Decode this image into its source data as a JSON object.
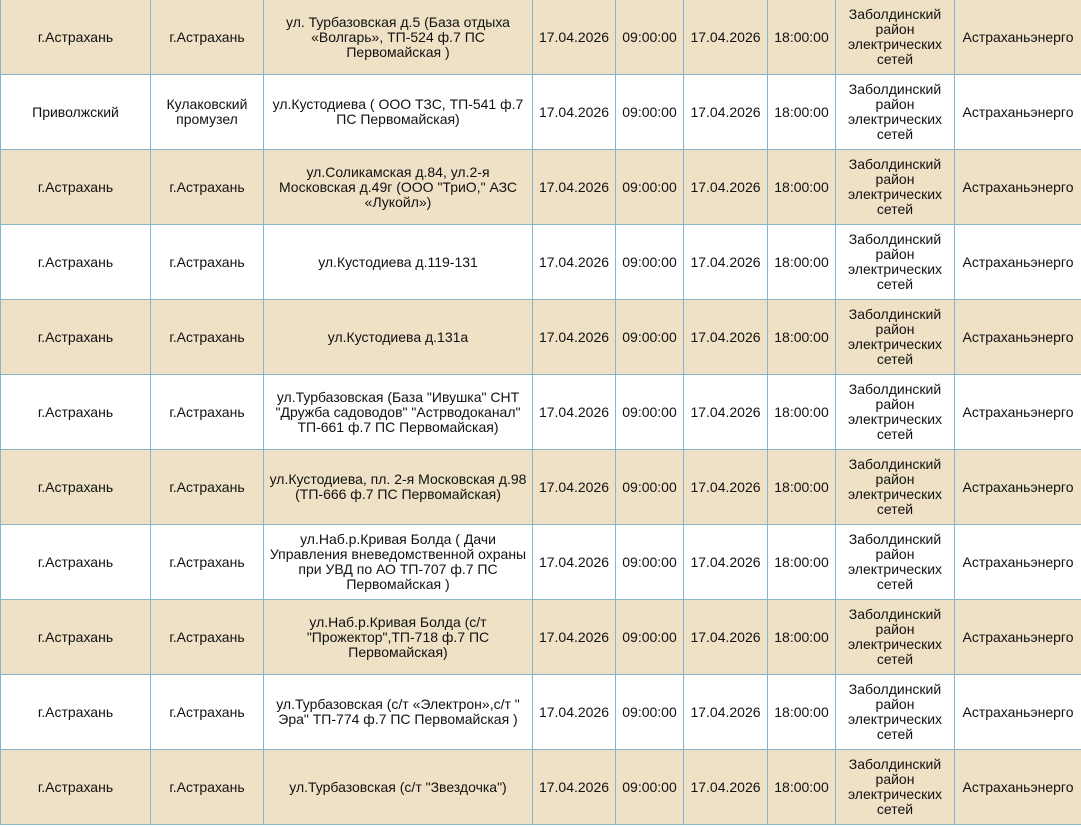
{
  "table": {
    "rows": [
      [
        "г.Астрахань",
        "г.Астрахань",
        "ул. Турбазовская д.5 (База отдыха «Волгарь», ТП-524 ф.7 ПС Первомайская )",
        "17.04.2026",
        "09:00:00",
        "17.04.2026",
        "18:00:00",
        "Заболдинский район электрических сетей",
        "Астраханьэнерго"
      ],
      [
        "Приволжский",
        "Кулаковский промузел",
        "ул.Кустодиева ( ООО ТЗС, ТП-541 ф.7 ПС Первомайская)",
        "17.04.2026",
        "09:00:00",
        "17.04.2026",
        "18:00:00",
        "Заболдинский район электрических сетей",
        "Астраханьэнерго"
      ],
      [
        "г.Астрахань",
        "г.Астрахань",
        "ул.Соликамская д.84, ул.2-я Московская д.49г (ООО \"ТриО,\" АЗС «Лукойл»)",
        "17.04.2026",
        "09:00:00",
        "17.04.2026",
        "18:00:00",
        "Заболдинский район электрических сетей",
        "Астраханьэнерго"
      ],
      [
        "г.Астрахань",
        "г.Астрахань",
        "ул.Кустодиева д.119-131",
        "17.04.2026",
        "09:00:00",
        "17.04.2026",
        "18:00:00",
        "Заболдинский район электрических сетей",
        "Астраханьэнерго"
      ],
      [
        "г.Астрахань",
        "г.Астрахань",
        "ул.Кустодиева д.131а",
        "17.04.2026",
        "09:00:00",
        "17.04.2026",
        "18:00:00",
        "Заболдинский район электрических сетей",
        "Астраханьэнерго"
      ],
      [
        "г.Астрахань",
        "г.Астрахань",
        "ул.Турбазовская (База \"Ивушка\" СНТ \"Дружба садоводов\" \"Астрводоканал\" ТП-661 ф.7 ПС Первомайская)",
        "17.04.2026",
        "09:00:00",
        "17.04.2026",
        "18:00:00",
        "Заболдинский район электрических сетей",
        "Астраханьэнерго"
      ],
      [
        "г.Астрахань",
        "г.Астрахань",
        "ул.Кустодиева, пл. 2-я Московская д.98 (ТП-666 ф.7 ПС Первомайская)",
        "17.04.2026",
        "09:00:00",
        "17.04.2026",
        "18:00:00",
        "Заболдинский район электрических сетей",
        "Астраханьэнерго"
      ],
      [
        "г.Астрахань",
        "г.Астрахань",
        "ул.Наб.р.Кривая Болда ( Дачи Управления вневедомственной охраны при УВД по АО ТП-707 ф.7 ПС Первомайская )",
        "17.04.2026",
        "09:00:00",
        "17.04.2026",
        "18:00:00",
        "Заболдинский район электрических сетей",
        "Астраханьэнерго"
      ],
      [
        "г.Астрахань",
        "г.Астрахань",
        "ул.Наб.р.Кривая Болда (с/т \"Прожектор\",ТП-718 ф.7 ПС Первомайская)",
        "17.04.2026",
        "09:00:00",
        "17.04.2026",
        "18:00:00",
        "Заболдинский район электрических сетей",
        "Астраханьэнерго"
      ],
      [
        "г.Астрахань",
        "г.Астрахань",
        "ул.Турбазовская (с/т «Электрон»,с/т \" Эра\" ТП-774 ф.7 ПС Первомайская )",
        "17.04.2026",
        "09:00:00",
        "17.04.2026",
        "18:00:00",
        "Заболдинский район электрических сетей",
        "Астраханьэнерго"
      ],
      [
        "г.Астрахань",
        "г.Астрахань",
        "ул.Турбазовская (с/т \"Звездочка\")",
        "17.04.2026",
        "09:00:00",
        "17.04.2026",
        "18:00:00",
        "Заболдинский район электрических сетей",
        "Астраханьэнерго"
      ]
    ]
  }
}
